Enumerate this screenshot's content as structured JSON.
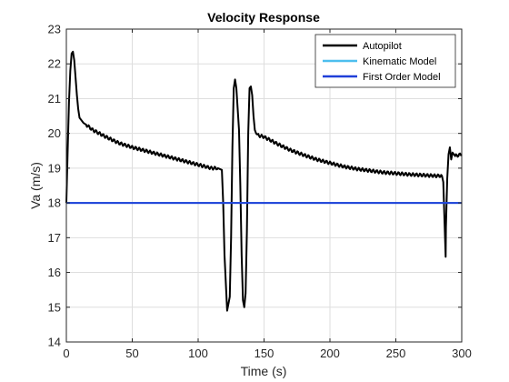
{
  "chart_data": {
    "type": "line",
    "title": "Velocity Response",
    "xlabel": "Time (s)",
    "ylabel": "Va (m/s)",
    "xlim": [
      0,
      300
    ],
    "ylim": [
      14,
      23
    ],
    "xticks": [
      0,
      50,
      100,
      150,
      200,
      250,
      300
    ],
    "yticks": [
      14,
      15,
      16,
      17,
      18,
      19,
      20,
      21,
      22,
      23
    ],
    "grid": true,
    "legend_position": "top-right",
    "series": [
      {
        "name": "Autopilot",
        "color": "#000000",
        "x": [
          0,
          1,
          2,
          3,
          4,
          5,
          6,
          7,
          8,
          9,
          10,
          11,
          12,
          13,
          15,
          20,
          30,
          40,
          50,
          60,
          70,
          80,
          90,
          100,
          105,
          110,
          115,
          118,
          119,
          120,
          122,
          124,
          125,
          126,
          127,
          128,
          129,
          130,
          131,
          132,
          133,
          134,
          135,
          136,
          137,
          138,
          139,
          140,
          141,
          142,
          143,
          144,
          145,
          150,
          160,
          170,
          180,
          190,
          200,
          210,
          220,
          230,
          240,
          250,
          260,
          270,
          280,
          285,
          286,
          287,
          287.8,
          288,
          289,
          290,
          291,
          292,
          293,
          295,
          300
        ],
        "y": [
          18.0,
          19.5,
          20.9,
          21.8,
          22.3,
          22.35,
          22.1,
          21.6,
          21.1,
          20.7,
          20.45,
          20.4,
          20.35,
          20.3,
          20.25,
          20.1,
          19.9,
          19.72,
          19.6,
          19.5,
          19.4,
          19.3,
          19.2,
          19.1,
          19.05,
          19.0,
          19.0,
          18.95,
          18.0,
          16.5,
          14.9,
          15.3,
          17.0,
          19.6,
          21.3,
          21.55,
          21.3,
          20.7,
          20.1,
          18.5,
          16.5,
          15.2,
          15.0,
          15.4,
          17.2,
          20.0,
          21.3,
          21.35,
          21.1,
          20.5,
          20.1,
          20.0,
          19.95,
          19.9,
          19.7,
          19.52,
          19.38,
          19.25,
          19.15,
          19.05,
          18.98,
          18.93,
          18.88,
          18.85,
          18.82,
          18.8,
          18.78,
          18.78,
          18.6,
          17.4,
          16.45,
          17.3,
          18.7,
          19.4,
          19.6,
          19.25,
          19.45,
          19.35,
          19.4
        ]
      },
      {
        "name": "Kinematic Model",
        "color": "#4DBEEE",
        "x": [
          0,
          300
        ],
        "y": [
          18,
          18
        ]
      },
      {
        "name": "First Order Model",
        "color": "#1F3FD8",
        "x": [
          0,
          300
        ],
        "y": [
          18,
          18
        ]
      }
    ]
  }
}
